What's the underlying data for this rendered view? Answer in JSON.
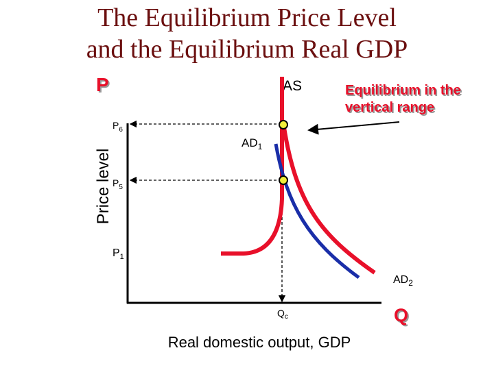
{
  "title": {
    "lines": [
      "The Equilibrium Price Level",
      "and the Equilibrium Real GDP"
    ]
  },
  "axes": {
    "y_symbol": "P",
    "y_label": "Price level",
    "x_symbol": "Q",
    "x_label": "Real domestic output, GDP"
  },
  "curves": {
    "as": "AS",
    "ad1": {
      "text": "AD",
      "sub": "1"
    },
    "ad2": {
      "text": "AD",
      "sub": "2"
    }
  },
  "annotation": {
    "lines": [
      "Equilibrium in the",
      "vertical range"
    ]
  },
  "levels": {
    "p6": {
      "text": "P",
      "sub": "6"
    },
    "p5": {
      "text": "P",
      "sub": "5"
    },
    "p1": {
      "text": "P",
      "sub": "1"
    },
    "qc": {
      "text": "Q",
      "sub": "c"
    }
  }
}
